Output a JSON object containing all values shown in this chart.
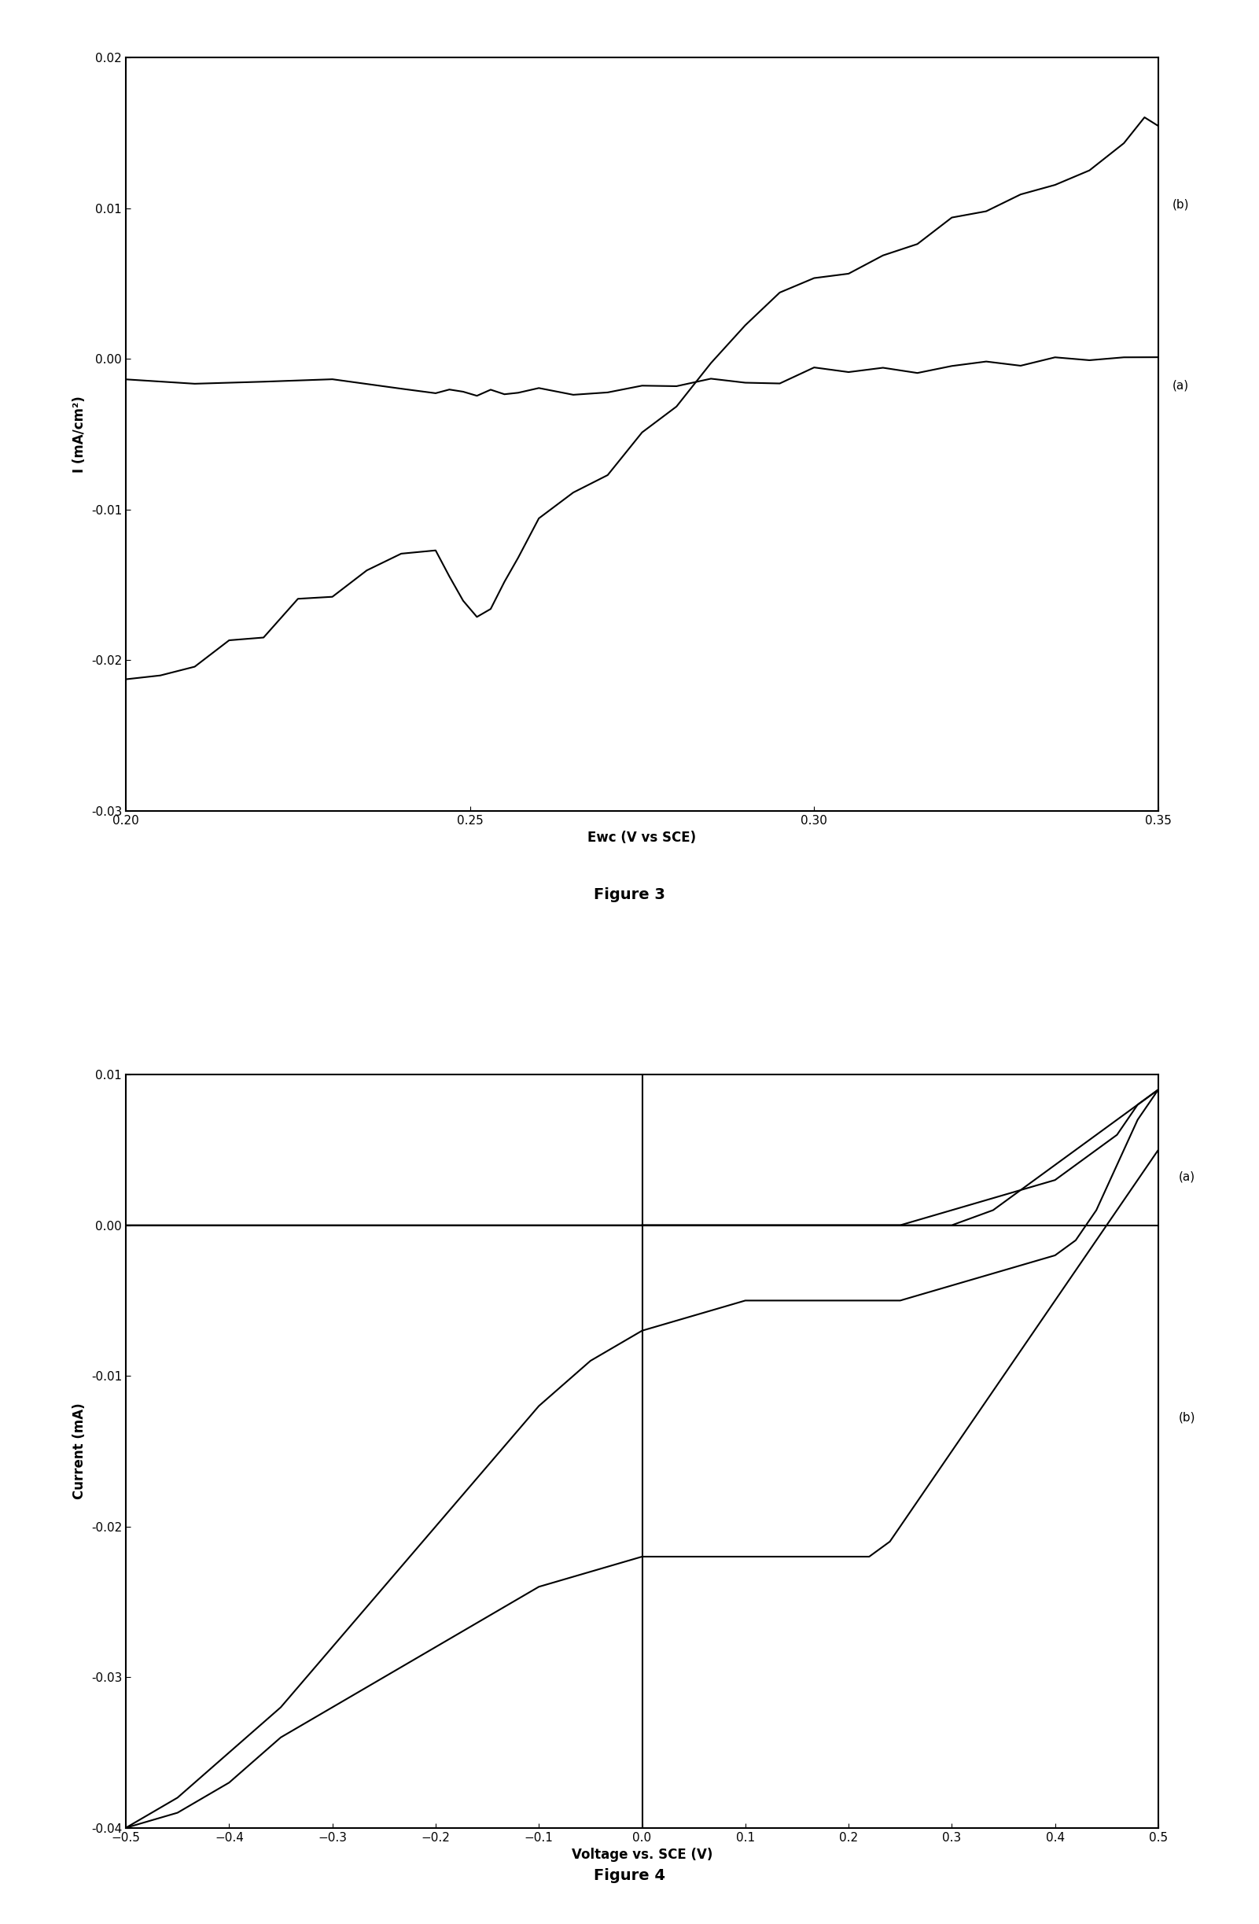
{
  "fig3": {
    "title": "Figure 3",
    "xlabel": "Ewc (V vs SCE)",
    "ylabel": "I (mA/cm²)",
    "xlim": [
      0.2,
      0.35
    ],
    "ylim": [
      -0.03,
      0.02
    ],
    "xticks": [
      0.2,
      0.25,
      0.3,
      0.35
    ],
    "yticks": [
      -0.03,
      -0.02,
      -0.01,
      0,
      0.01,
      0.02
    ],
    "curve_a": {
      "x": [
        0.2,
        0.21,
        0.22,
        0.23,
        0.24,
        0.245,
        0.247,
        0.249,
        0.251,
        0.253,
        0.255,
        0.257,
        0.26,
        0.265,
        0.27,
        0.275,
        0.28,
        0.285,
        0.29,
        0.295,
        0.3,
        0.305,
        0.31,
        0.315,
        0.32,
        0.325,
        0.33,
        0.335,
        0.34,
        0.345,
        0.35
      ],
      "y": [
        -0.0015,
        -0.0016,
        -0.0017,
        -0.0018,
        -0.0019,
        -0.0022,
        -0.0025,
        -0.0024,
        -0.0023,
        -0.0022,
        -0.0022,
        -0.0021,
        -0.002,
        -0.0018,
        -0.0017,
        -0.0016,
        -0.0015,
        -0.0014,
        -0.0013,
        -0.0012,
        -0.001,
        -0.0008,
        -0.0006,
        -0.0005,
        -0.0003,
        -0.0002,
        -0.0001,
        0.0,
        0.0001,
        0.0002,
        0.0003
      ],
      "label": "(a)"
    },
    "curve_b": {
      "x": [
        0.2,
        0.205,
        0.21,
        0.215,
        0.22,
        0.225,
        0.23,
        0.235,
        0.24,
        0.245,
        0.247,
        0.249,
        0.251,
        0.253,
        0.255,
        0.257,
        0.26,
        0.265,
        0.27,
        0.275,
        0.28,
        0.285,
        0.29,
        0.295,
        0.3,
        0.305,
        0.31,
        0.315,
        0.32,
        0.325,
        0.33,
        0.335,
        0.34,
        0.345,
        0.348,
        0.35,
        0.35
      ],
      "y": [
        -0.022,
        -0.021,
        -0.02,
        -0.019,
        -0.018,
        -0.016,
        -0.015,
        -0.0135,
        -0.013,
        -0.013,
        -0.0145,
        -0.016,
        -0.017,
        -0.016,
        -0.0145,
        -0.013,
        -0.011,
        -0.009,
        -0.007,
        -0.005,
        -0.003,
        0.0,
        0.002,
        0.004,
        0.005,
        0.006,
        0.007,
        0.0075,
        0.009,
        0.01,
        0.011,
        0.012,
        0.013,
        0.014,
        0.0155,
        0.0155,
        0.005
      ],
      "label": "(b)"
    },
    "vline_x": 0.35
  },
  "fig4": {
    "title": "Figure 4",
    "xlabel": "Voltage vs. SCE (V)",
    "ylabel": "Current (mA)",
    "xlim": [
      -0.5,
      0.5
    ],
    "ylim": [
      -0.04,
      0.01
    ],
    "xticks": [
      -0.5,
      -0.4,
      -0.3,
      -0.2,
      -0.1,
      0,
      0.1,
      0.2,
      0.3,
      0.4,
      0.5
    ],
    "yticks": [
      -0.04,
      -0.03,
      -0.02,
      -0.01,
      0,
      0.01
    ],
    "vline_x": 0.0,
    "hline_y": 0.0,
    "curve_a_fwd": {
      "x": [
        -0.5,
        -0.45,
        -0.4,
        -0.35,
        -0.3,
        -0.25,
        -0.2,
        -0.15,
        -0.1,
        -0.05,
        0.0,
        0.05,
        0.1,
        0.15,
        0.2,
        0.25,
        0.3,
        0.35,
        0.4,
        0.42,
        0.44,
        0.46,
        0.48,
        0.5
      ],
      "y": [
        0.0,
        0.0,
        0.0,
        0.0,
        0.0,
        0.0,
        0.0,
        0.0,
        0.0,
        0.0,
        0.0,
        0.0,
        0.0,
        0.0,
        0.0,
        0.0,
        0.001,
        0.002,
        0.003,
        0.004,
        0.005,
        0.006,
        0.008,
        0.009
      ]
    },
    "curve_a_bwd": {
      "x": [
        0.5,
        0.48,
        0.46,
        0.44,
        0.42,
        0.4,
        0.38,
        0.36,
        0.34,
        0.32,
        0.3,
        0.28,
        0.26,
        0.24,
        0.22,
        0.2,
        0.15,
        0.1,
        0.05,
        0.0
      ],
      "y": [
        0.009,
        0.008,
        0.007,
        0.006,
        0.005,
        0.004,
        0.003,
        0.002,
        0.001,
        0.0005,
        0.0,
        0.0,
        0.0,
        0.0,
        0.0,
        0.0,
        0.0,
        0.0,
        0.0,
        0.0
      ]
    },
    "curve_b_fwd": {
      "x": [
        -0.5,
        -0.45,
        -0.4,
        -0.35,
        -0.3,
        -0.25,
        -0.2,
        -0.15,
        -0.1,
        -0.05,
        0.0,
        0.05,
        0.1,
        0.15,
        0.2,
        0.25,
        0.3,
        0.35,
        0.4,
        0.42,
        0.44,
        0.46,
        0.48,
        0.5
      ],
      "y": [
        -0.04,
        -0.038,
        -0.035,
        -0.032,
        -0.028,
        -0.024,
        -0.02,
        -0.016,
        -0.012,
        -0.009,
        -0.007,
        -0.006,
        -0.005,
        -0.005,
        -0.005,
        -0.005,
        -0.004,
        -0.003,
        -0.002,
        -0.001,
        0.001,
        0.004,
        0.007,
        0.009
      ]
    },
    "curve_b_bwd": {
      "x": [
        0.5,
        0.48,
        0.46,
        0.44,
        0.42,
        0.4,
        0.38,
        0.36,
        0.34,
        0.32,
        0.3,
        0.28,
        0.26,
        0.24,
        0.22,
        0.2,
        0.15,
        0.1,
        0.05,
        0.0,
        -0.05,
        -0.1,
        -0.15,
        -0.2,
        -0.25,
        -0.3,
        -0.35,
        -0.4,
        -0.45,
        -0.5
      ],
      "y": [
        0.005,
        0.003,
        0.001,
        -0.001,
        -0.003,
        -0.005,
        -0.007,
        -0.009,
        -0.011,
        -0.013,
        -0.015,
        -0.017,
        -0.019,
        -0.021,
        -0.022,
        -0.022,
        -0.022,
        -0.022,
        -0.022,
        -0.022,
        -0.023,
        -0.024,
        -0.026,
        -0.028,
        -0.03,
        -0.032,
        -0.034,
        -0.037,
        -0.039,
        -0.04
      ]
    }
  },
  "line_color": "#000000",
  "background_color": "#ffffff",
  "title_fontsize": 14,
  "label_fontsize": 12,
  "tick_fontsize": 11,
  "annotation_fontsize": 11
}
